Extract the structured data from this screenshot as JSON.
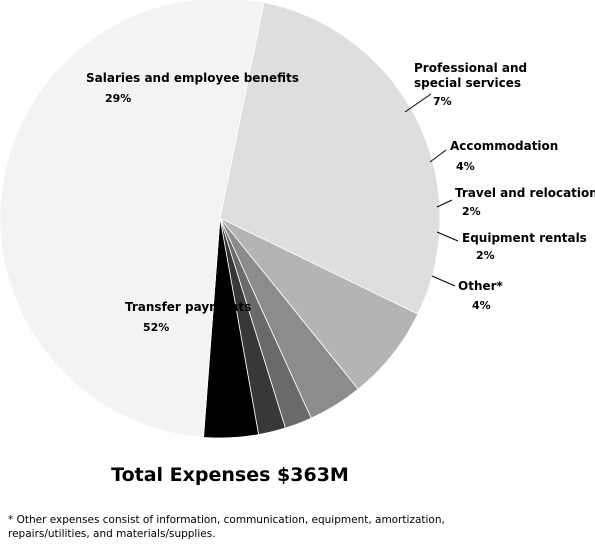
{
  "chart_data": {
    "type": "pie",
    "title": "Total Expenses $363M",
    "footnote": "* Other expenses consist of information, communication, equipment, amortization, repairs/utilities, and materials/supplies.",
    "slices": [
      {
        "label": "Salaries and employee benefits",
        "value": 29,
        "value_label": "29%",
        "color": "#dedede"
      },
      {
        "label": "Professional and special services",
        "value": 7,
        "value_label": "7%",
        "color": "#b4b4b4"
      },
      {
        "label": "Accommodation",
        "value": 4,
        "value_label": "4%",
        "color": "#8c8c8c"
      },
      {
        "label": "Travel and relocation",
        "value": 2,
        "value_label": "2%",
        "color": "#6a6a6a"
      },
      {
        "label": "Equipment rentals",
        "value": 2,
        "value_label": "2%",
        "color": "#383838"
      },
      {
        "label": "Other*",
        "value": 4,
        "value_label": "4%",
        "color": "#000000"
      },
      {
        "label": "Transfer payments",
        "value": 52,
        "value_label": "52%",
        "color": "#f3f3f3"
      }
    ]
  }
}
